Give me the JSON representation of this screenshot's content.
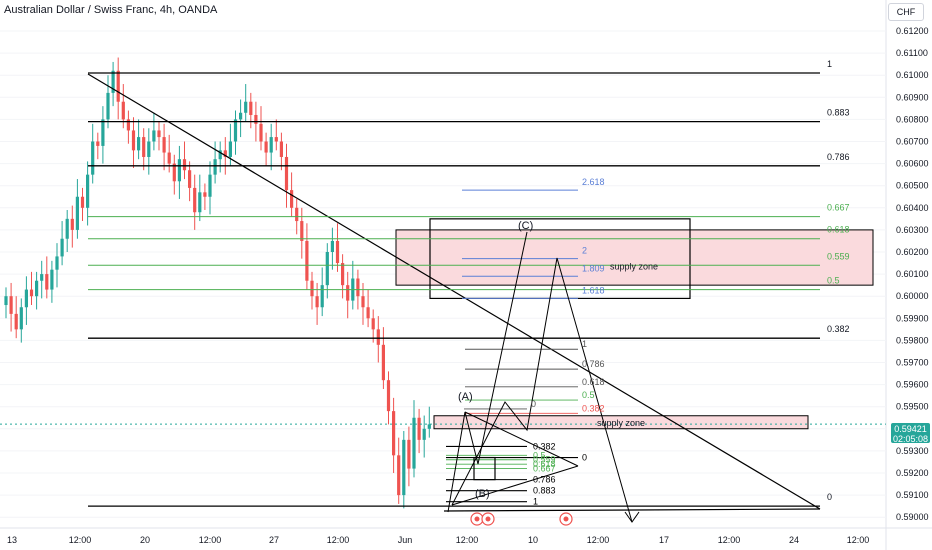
{
  "header": {
    "title": "Australian Dollar / Swiss Franc, 4h, OANDA",
    "currency": "CHF"
  },
  "last_price": {
    "value": "0.59421",
    "countdown": "02:05:08",
    "color": "#26a69a"
  },
  "colors": {
    "up": "#26a69a",
    "down": "#ef5350",
    "zone_fill": "#fadadd",
    "fib_green": "#4caf50",
    "fib_blue": "#5b7fd6",
    "fib_red": "#ef5350",
    "line": "#000000"
  },
  "chart_data": {
    "type": "candlestick",
    "symbol": "AUDCHF",
    "timeframe": "4h",
    "y_axis": {
      "range": [
        0.5897,
        0.6132
      ],
      "ticks": [
        "0.61200",
        "0.61100",
        "0.61000",
        "0.60900",
        "0.60800",
        "0.60700",
        "0.60600",
        "0.60500",
        "0.60400",
        "0.60300",
        "0.60200",
        "0.60100",
        "0.60000",
        "0.59900",
        "0.59800",
        "0.59700",
        "0.59600",
        "0.59500",
        "0.59400",
        "0.59300",
        "0.59200",
        "0.59100",
        "0.59000"
      ]
    },
    "x_axis": {
      "ticks": [
        "13",
        "12:00",
        "20",
        "12:00",
        "27",
        "12:00",
        "Jun",
        "12:00",
        "10",
        "12:00",
        "17",
        "12:00",
        "24",
        "12:00"
      ]
    },
    "candles_close": [
      0.6,
      0.5992,
      0.5985,
      0.5995,
      0.6003,
      0.6,
      0.6007,
      0.601,
      0.6003,
      0.6012,
      0.6018,
      0.6026,
      0.6035,
      0.603,
      0.6045,
      0.604,
      0.6055,
      0.607,
      0.6068,
      0.608,
      0.6092,
      0.6102,
      0.6088,
      0.608,
      0.6075,
      0.6066,
      0.6072,
      0.6063,
      0.607,
      0.6075,
      0.6072,
      0.6065,
      0.606,
      0.6052,
      0.6062,
      0.6057,
      0.6049,
      0.6038,
      0.6047,
      0.6045,
      0.6055,
      0.6062,
      0.6066,
      0.6063,
      0.607,
      0.608,
      0.6083,
      0.6088,
      0.6082,
      0.6078,
      0.607,
      0.6065,
      0.6072,
      0.607,
      0.6063,
      0.6048,
      0.604,
      0.6034,
      0.6025,
      0.6007,
      0.6,
      0.5995,
      0.6005,
      0.602,
      0.6025,
      0.6015,
      0.6005,
      0.5998,
      0.6008,
      0.6,
      0.5995,
      0.599,
      0.5985,
      0.5978,
      0.5962,
      0.5948,
      0.5928,
      0.591,
      0.5935,
      0.5922,
      0.5945,
      0.5935,
      0.594,
      0.5942
    ],
    "horizontal_levels": [
      {
        "label": "1",
        "price": 0.6101
      },
      {
        "label": "0.883",
        "price": 0.6079
      },
      {
        "label": "0.786",
        "price": 0.6059
      },
      {
        "label": "0.382",
        "price": 0.5981
      },
      {
        "label": "0",
        "price": 0.5905
      }
    ],
    "green_levels": [
      {
        "label": "0.667",
        "price": 0.6036
      },
      {
        "label": "0.618",
        "price": 0.6026
      },
      {
        "label": "0.559",
        "price": 0.6014
      },
      {
        "label": "0.5",
        "price": 0.6003
      }
    ],
    "extension_levels": [
      {
        "label": "2.618",
        "price": 0.6048
      },
      {
        "label": "2",
        "price": 0.6017
      },
      {
        "label": "1.809",
        "price": 0.6009
      },
      {
        "label": "1.618",
        "price": 0.5999
      }
    ],
    "small_fib": {
      "upper": [
        {
          "label": "1",
          "price": 0.5976
        },
        {
          "label": "0.786",
          "price": 0.5967
        },
        {
          "label": "0.618",
          "price": 0.5959
        },
        {
          "label": "0.5",
          "price": 0.5953
        },
        {
          "label": "0.382",
          "price": 0.5947
        },
        {
          "label": "0",
          "price": 0.5949
        }
      ],
      "lower": [
        {
          "label": "0.382",
          "price": 0.5932
        },
        {
          "label": "0.5",
          "price": 0.5928
        },
        {
          "label": "0.559",
          "price": 0.5926
        },
        {
          "label": "0.618",
          "price": 0.5924
        },
        {
          "label": "0.667",
          "price": 0.5922
        },
        {
          "label": "0.786",
          "price": 0.5917
        },
        {
          "label": "0.883",
          "price": 0.5912
        },
        {
          "label": "1",
          "price": 0.5907
        },
        {
          "label": "0",
          "price": 0.5927
        }
      ]
    },
    "supply_zones": [
      {
        "label": "supply zone",
        "top": 0.603,
        "bottom": 0.6005
      },
      {
        "label": "supply zone",
        "top": 0.5945,
        "bottom": 0.5941
      }
    ],
    "wave_labels": [
      "(A)",
      "(B)",
      "(C)"
    ]
  }
}
